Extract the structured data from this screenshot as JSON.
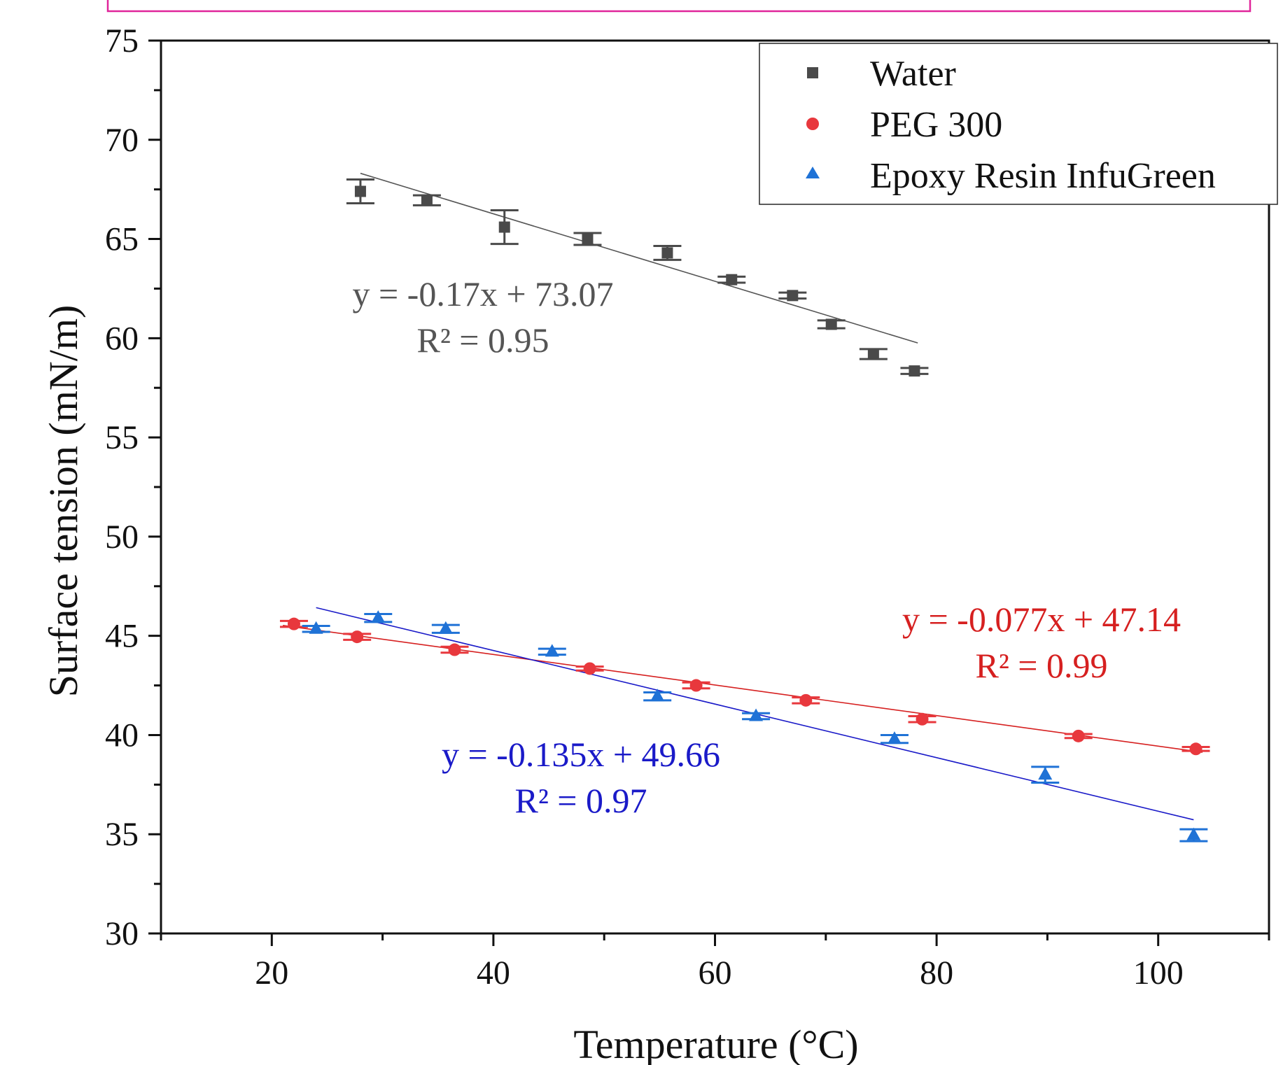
{
  "colors": {
    "water": "#4a4a4a",
    "peg": "#e8383d",
    "epoxy": "#1f72d6",
    "epoxy_fit": "#1a1ac8",
    "peg_fit": "#d62020",
    "water_fit": "#555555",
    "top_frame": "#e0259a"
  },
  "chart_data": {
    "type": "scatter",
    "xlabel": "Temperature (°C)",
    "ylabel": "Surface tension (mN/m)",
    "xlim": [
      10,
      110
    ],
    "ylim": [
      30,
      75
    ],
    "x_ticks": [
      20,
      40,
      60,
      80,
      100
    ],
    "x_tick_labels": [
      "20",
      "40",
      "60",
      "80",
      "100"
    ],
    "y_ticks": [
      30,
      35,
      40,
      45,
      50,
      55,
      60,
      65,
      70,
      75
    ],
    "y_tick_labels": [
      "30",
      "35",
      "40",
      "45",
      "50",
      "55",
      "60",
      "65",
      "70",
      "75"
    ],
    "grid": false,
    "legend_position": "top-right",
    "series": [
      {
        "name": "Water",
        "marker": "square",
        "color": "#4a4a4a",
        "x": [
          28,
          34,
          41,
          48.5,
          55.7,
          61.5,
          67,
          70.5,
          74.3,
          78
        ],
        "y": [
          67.4,
          66.95,
          65.6,
          65.0,
          64.3,
          62.95,
          62.15,
          60.7,
          59.2,
          58.35
        ],
        "y_err": [
          0.6,
          0.25,
          0.85,
          0.3,
          0.35,
          0.15,
          0.15,
          0.2,
          0.25,
          0.15
        ],
        "fit": {
          "slope": -0.17,
          "intercept": 73.07,
          "x_range": [
            28,
            78.3
          ]
        }
      },
      {
        "name": "PEG 300",
        "marker": "circle",
        "color": "#e8383d",
        "x": [
          22,
          27.7,
          36.5,
          48.7,
          58.3,
          68.2,
          78.7,
          92.8,
          103.4
        ],
        "y": [
          45.6,
          44.95,
          44.3,
          43.35,
          42.5,
          41.75,
          40.8,
          39.95,
          39.3
        ],
        "y_err": [
          0.15,
          0.15,
          0.15,
          0.1,
          0.15,
          0.15,
          0.15,
          0.1,
          0.1
        ],
        "fit": {
          "slope": -0.077,
          "intercept": 47.14,
          "x_range": [
            21,
            104
          ]
        }
      },
      {
        "name": "Epoxy Resin InfuGreen",
        "marker": "triangle",
        "color": "#1f72d6",
        "x": [
          24,
          29.6,
          35.7,
          45.3,
          54.8,
          63.7,
          76.2,
          89.8,
          103.2
        ],
        "y": [
          45.35,
          45.9,
          45.35,
          44.2,
          41.95,
          40.95,
          39.8,
          38.0,
          34.95
        ],
        "y_err": [
          0.15,
          0.2,
          0.2,
          0.15,
          0.2,
          0.15,
          0.2,
          0.4,
          0.3
        ],
        "fit": {
          "slope": -0.135,
          "intercept": 49.66,
          "x_range": [
            24,
            103.2
          ]
        }
      }
    ],
    "annotations": [
      {
        "series": "Water",
        "equation": "y = -0.17x + 73.07",
        "r2": "R² = 0.95",
        "color": "#555555"
      },
      {
        "series": "PEG 300",
        "equation": "y = -0.077x + 47.14",
        "r2": "R² = 0.99",
        "color": "#d62020"
      },
      {
        "series": "Epoxy Resin InfuGreen",
        "equation": "y = -0.135x + 49.66",
        "r2": "R² = 0.97",
        "color": "#1a1ac8"
      }
    ]
  }
}
